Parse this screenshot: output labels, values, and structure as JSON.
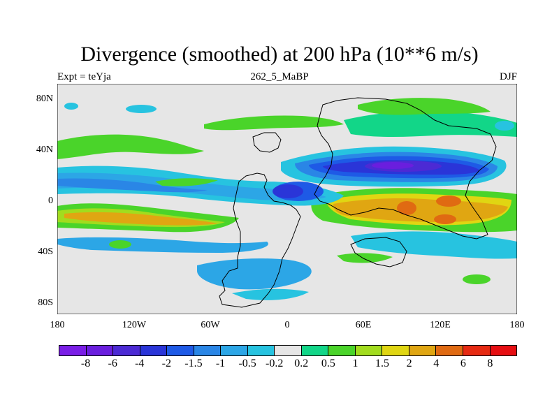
{
  "figure": {
    "title": "Divergence (smoothed) at 200 hPa (10**6 m/s)",
    "experiment": "Expt = teYja",
    "run_id": "262_5_MaBP",
    "season": "DJF"
  },
  "axes": {
    "y_ticks": [
      "80N",
      "40N",
      "0",
      "40S",
      "80S"
    ],
    "x_ticks": [
      "180",
      "120W",
      "60W",
      "0",
      "60E",
      "120E",
      "180"
    ]
  },
  "colorbar": {
    "colors": [
      "#7a1ee6",
      "#6a1ede",
      "#4c2ad4",
      "#2a35d8",
      "#1e5ae6",
      "#2a86e6",
      "#2ca6e6",
      "#27c3e0",
      "#e6e6e6",
      "#12d688",
      "#4ad42a",
      "#a2dc1e",
      "#e0d612",
      "#e0a612",
      "#e06a12",
      "#e62a12",
      "#e60e12"
    ],
    "labels": [
      "-8",
      "-6",
      "-4",
      "-2",
      "-1.5",
      "-1",
      "-0.5",
      "-0.2",
      "0.2",
      "0.5",
      "1",
      "1.5",
      "2",
      "4",
      "6",
      "8"
    ]
  }
}
